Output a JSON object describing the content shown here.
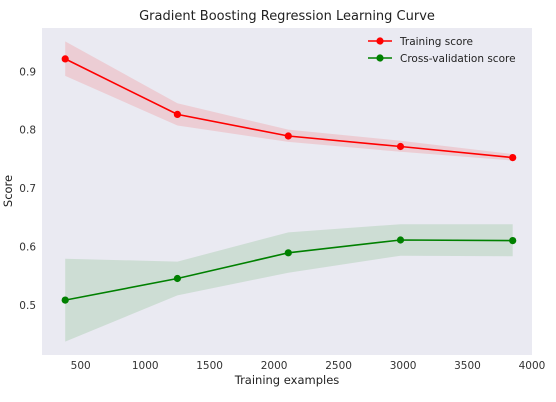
{
  "chart_data": {
    "type": "line",
    "title": "Gradient Boosting Regression Learning Curve",
    "xlabel": "Training examples",
    "ylabel": "Score",
    "xlim": [
      200,
      4000
    ],
    "ylim": [
      0.415,
      0.975
    ],
    "xticks": [
      500,
      1000,
      1500,
      2000,
      2500,
      3000,
      3500,
      4000
    ],
    "yticks": [
      0.5,
      0.6,
      0.7,
      0.8,
      0.9
    ],
    "grid": false,
    "legend_position": "top-right",
    "background": "#eaeaf2",
    "series": [
      {
        "name": "Training score",
        "color": "#ff0000",
        "band_color": "#ff0000",
        "x": [
          380,
          1250,
          2110,
          2980,
          3850
        ],
        "y": [
          0.922,
          0.827,
          0.79,
          0.772,
          0.753
        ],
        "y_lower": [
          0.893,
          0.808,
          0.78,
          0.763,
          0.748
        ],
        "y_upper": [
          0.952,
          0.846,
          0.801,
          0.782,
          0.759
        ]
      },
      {
        "name": "Cross-validation score",
        "color": "#008000",
        "band_color": "#008000",
        "x": [
          380,
          1250,
          2110,
          2980,
          3850
        ],
        "y": [
          0.509,
          0.546,
          0.59,
          0.612,
          0.611
        ],
        "y_lower": [
          0.438,
          0.517,
          0.556,
          0.585,
          0.584
        ],
        "y_upper": [
          0.58,
          0.575,
          0.625,
          0.639,
          0.639
        ]
      }
    ]
  }
}
